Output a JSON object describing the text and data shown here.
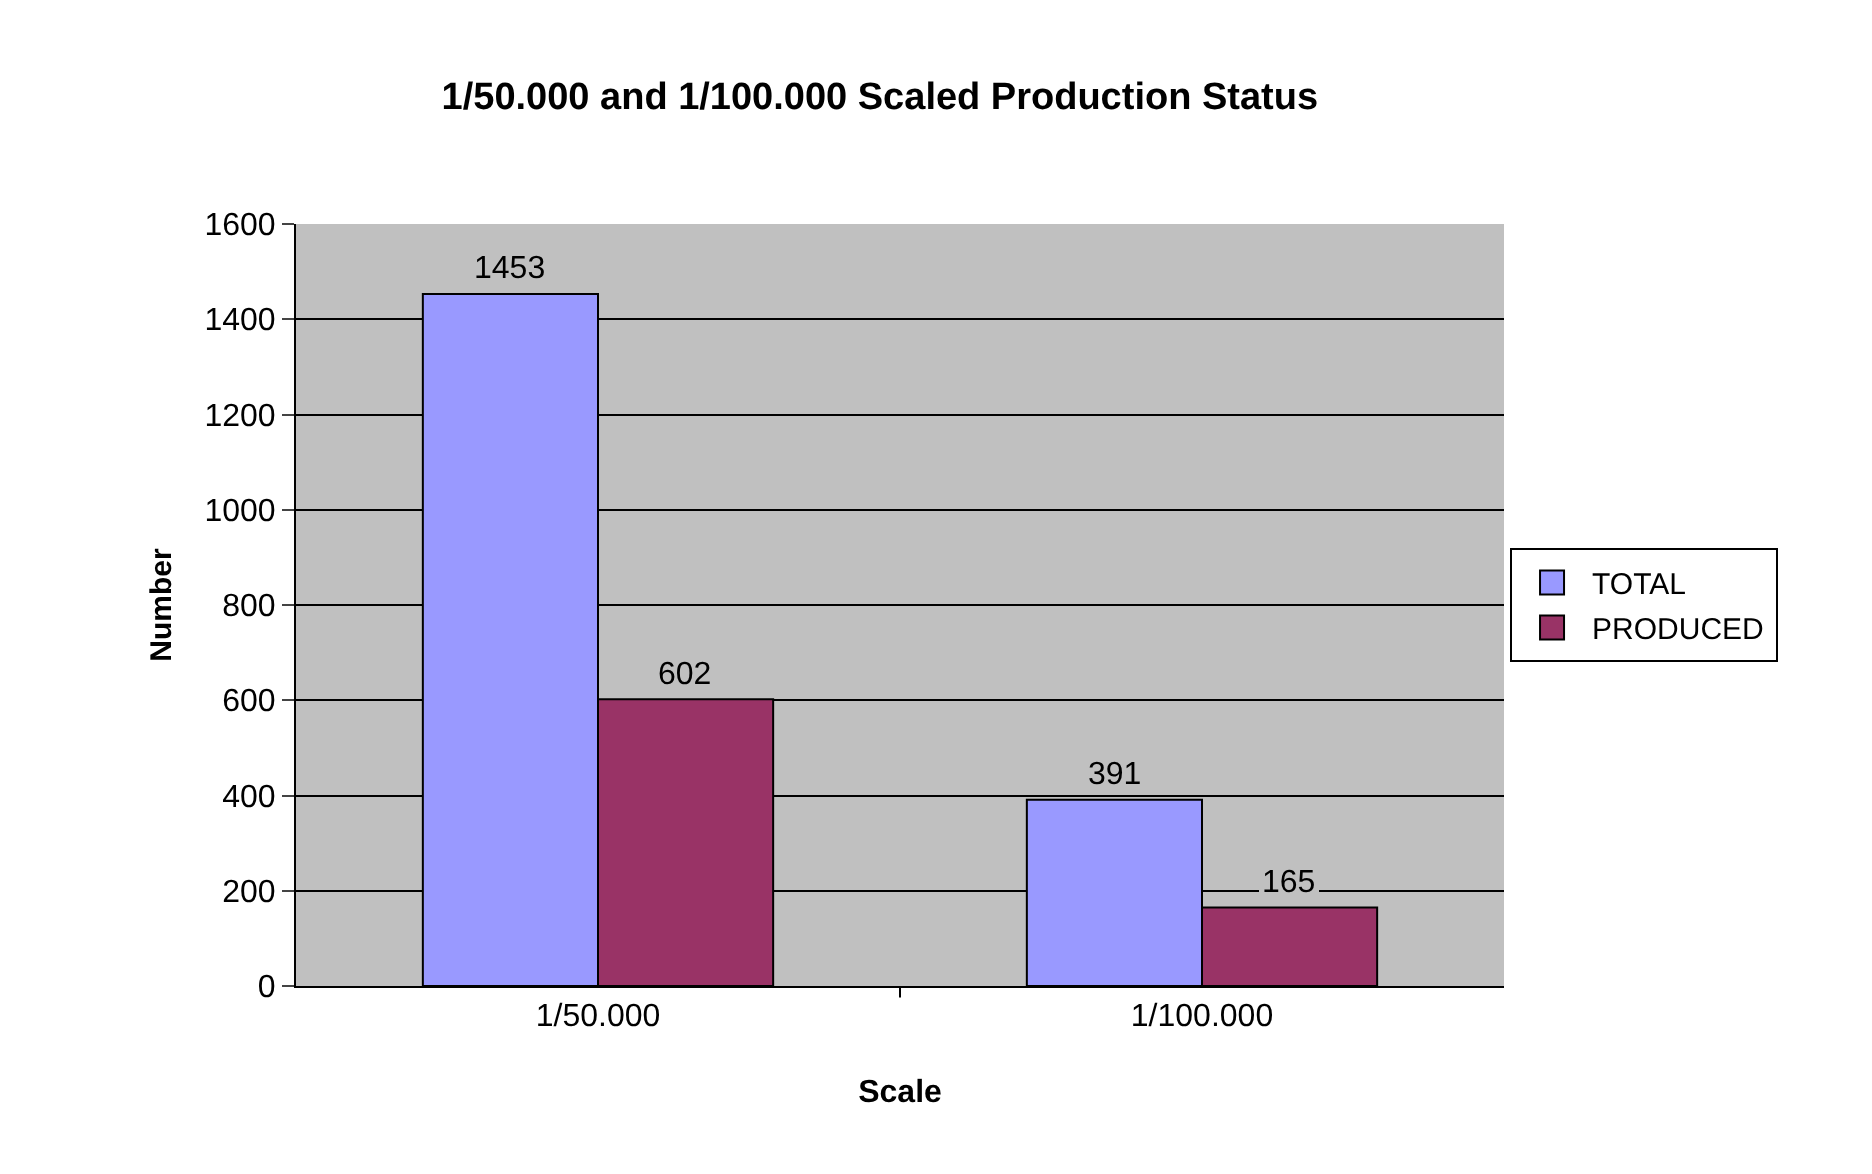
{
  "chart_data": {
    "type": "bar",
    "title": "1/50.000 and 1/100.000 Scaled Production Status",
    "xlabel": "Scale",
    "ylabel": "Number",
    "categories": [
      "1/50.000",
      "1/100.000"
    ],
    "series": [
      {
        "name": "TOTAL",
        "color": "#9999ff",
        "values": [
          1453,
          391
        ]
      },
      {
        "name": "PRODUCED",
        "color": "#993366",
        "values": [
          602,
          165
        ]
      }
    ],
    "ylim": [
      0,
      1600
    ],
    "yticks": [
      0,
      200,
      400,
      600,
      800,
      1000,
      1200,
      1400,
      1600
    ],
    "grid": "y",
    "legend": "right",
    "data_labels": true
  }
}
